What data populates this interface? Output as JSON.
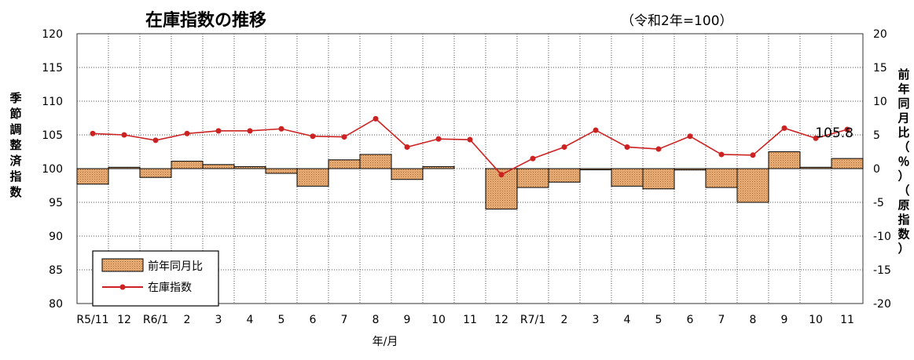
{
  "chart_data": {
    "type": "bar+line",
    "title": "在庫指数の推移",
    "subtitle": "（令和2年=100）",
    "xlabel": "年/月",
    "ylabel_left": "季節調整済指数",
    "ylabel_right": "前年同月比（％）（原指数）",
    "ylim_left": [
      80,
      120
    ],
    "yticks_left": [
      120,
      115,
      110,
      105,
      100,
      95,
      90,
      85,
      80
    ],
    "ylim_right": [
      -20,
      20
    ],
    "yticks_right": [
      20,
      15,
      10,
      5,
      0,
      -5,
      -10,
      -15,
      -20
    ],
    "grid": true,
    "legend_position": "bottom-left",
    "categories": [
      "R5/11",
      "12",
      "R6/1",
      "2",
      "3",
      "4",
      "5",
      "6",
      "7",
      "8",
      "9",
      "10",
      "11",
      "12",
      "R7/1",
      "2",
      "3",
      "4",
      "5",
      "6",
      "7",
      "8",
      "9",
      "10",
      "11"
    ],
    "series": [
      {
        "name": "前年同月比",
        "kind": "bar",
        "axis": "right",
        "color": "#e4a46a",
        "values": [
          -2.3,
          0.2,
          -1.3,
          1.1,
          0.6,
          0.3,
          -0.7,
          -2.6,
          1.3,
          2.1,
          -1.6,
          0.3,
          null,
          -6.0,
          -2.8,
          -2.0,
          -0.1,
          -2.6,
          -3.0,
          -0.2,
          -2.8,
          -5.0,
          2.5,
          0.2,
          1.5
        ]
      },
      {
        "name": "在庫指数",
        "kind": "line",
        "axis": "left",
        "color": "#cc2222",
        "values": [
          105.2,
          105.0,
          104.2,
          105.2,
          105.6,
          105.6,
          105.9,
          104.8,
          104.7,
          107.4,
          103.2,
          104.4,
          104.3,
          99.1,
          101.5,
          103.2,
          105.7,
          103.2,
          102.9,
          104.8,
          102.1,
          102.0,
          106.0,
          104.5,
          105.8
        ]
      }
    ],
    "annotations": [
      {
        "text": "105.8",
        "category": "11"
      }
    ]
  }
}
